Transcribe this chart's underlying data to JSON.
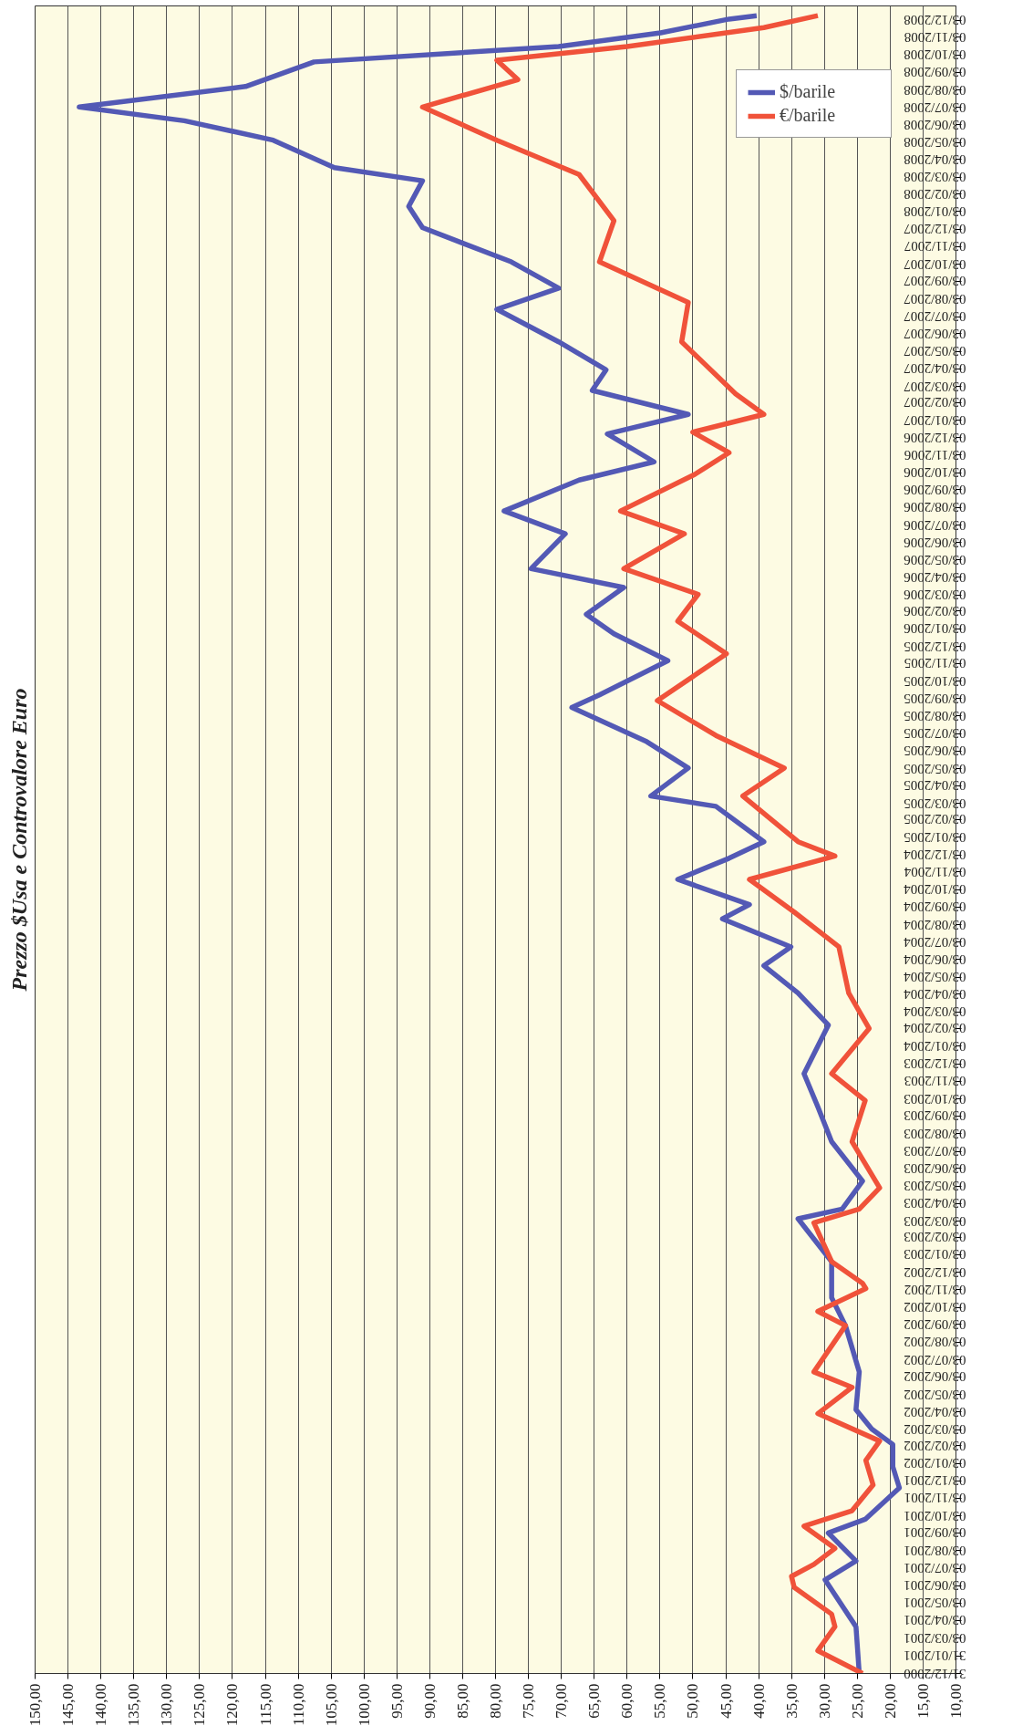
{
  "chart_data": {
    "type": "line",
    "orientation": "horizontal",
    "title": "Prezzo $Usa e Controvalore Euro",
    "series": [
      {
        "name": "$/barile",
        "color": "#5359b5",
        "x": [
          "2000-12-31",
          "2001-03-23",
          "2001-06-13",
          "2001-07-16",
          "2001-09-03",
          "2001-09-27",
          "2001-11-21",
          "2001-12-28",
          "2002-02-05",
          "2002-03-04",
          "2002-04-07",
          "2002-06-12",
          "2002-09-01",
          "2002-10-20",
          "2002-12-22",
          "2003-03-07",
          "2003-03-24",
          "2003-05-12",
          "2003-07-20",
          "2003-09-19",
          "2003-11-16",
          "2004-02-09",
          "2004-04-05",
          "2004-05-23",
          "2004-06-25",
          "2004-08-13",
          "2004-09-07",
          "2004-10-21",
          "2004-11-27",
          "2004-12-26",
          "2005-02-26",
          "2005-03-16",
          "2005-05-04",
          "2005-06-19",
          "2005-08-18",
          "2005-09-09",
          "2005-11-08",
          "2005-12-25",
          "2006-01-28",
          "2006-03-16",
          "2006-04-18",
          "2006-06-18",
          "2006-07-28",
          "2006-09-20",
          "2006-10-22",
          "2006-12-10",
          "2007-01-13",
          "2007-02-24",
          "2007-04-01",
          "2007-05-20",
          "2007-07-16",
          "2007-08-22",
          "2007-10-07",
          "2007-12-06",
          "2008-01-12",
          "2008-02-26",
          "2008-03-20",
          "2008-05-07",
          "2008-06-10",
          "2008-07-04",
          "2008-08-09",
          "2008-09-21",
          "2008-10-18",
          "2008-11-11",
          "2008-12-05",
          "2008-12-11"
        ],
        "values": [
          24.7,
          25.2,
          29.9,
          25.2,
          29.4,
          23.8,
          18.6,
          19.6,
          19.6,
          22.8,
          25.2,
          24.7,
          26.8,
          28.9,
          28.9,
          34.0,
          27.3,
          24.2,
          28.9,
          31.0,
          33.1,
          29.4,
          34.0,
          39.2,
          35.1,
          45.5,
          41.4,
          52.3,
          44.5,
          39.2,
          46.5,
          56.4,
          50.7,
          57.0,
          68.4,
          64.2,
          53.8,
          62.0,
          66.2,
          60.5,
          74.6,
          69.4,
          78.7,
          67.3,
          55.9,
          63.0,
          50.7,
          65.3,
          63.2,
          70.4,
          79.8,
          70.4,
          77.6,
          91.1,
          93.2,
          91.1,
          104.5,
          113.8,
          127.3,
          143.3,
          118.0,
          107.6,
          70.4,
          54.9,
          44.5,
          40.3
        ]
      },
      {
        "name": "€/barile",
        "color": "#f0523a",
        "x": [
          "2000-12-31",
          "2001-02-09",
          "2001-03-23",
          "2001-04-14",
          "2001-05-31",
          "2001-06-19",
          "2001-07-10",
          "2001-08-07",
          "2001-09-15",
          "2001-10-12",
          "2001-11-26",
          "2002-01-08",
          "2002-02-11",
          "2002-03-31",
          "2002-05-16",
          "2002-06-12",
          "2002-09-01",
          "2002-09-26",
          "2002-11-05",
          "2002-11-14",
          "2002-12-22",
          "2003-02-28",
          "2003-03-24",
          "2003-04-30",
          "2003-07-20",
          "2003-09-30",
          "2003-11-16",
          "2004-02-03",
          "2004-04-05",
          "2004-06-25",
          "2004-08-25",
          "2004-10-21",
          "2004-12-01",
          "2004-12-26",
          "2005-03-16",
          "2005-05-04",
          "2005-06-30",
          "2005-08-30",
          "2005-11-20",
          "2006-01-16",
          "2006-03-04",
          "2006-04-18",
          "2006-06-18",
          "2006-07-28",
          "2006-09-30",
          "2006-11-07",
          "2006-12-13",
          "2007-01-13",
          "2007-02-18",
          "2007-05-20",
          "2007-07-28",
          "2007-10-07",
          "2007-12-18",
          "2008-03-08",
          "2008-05-07",
          "2008-07-04",
          "2008-08-21",
          "2008-09-24",
          "2008-10-18",
          "2008-11-20",
          "2008-12-11"
        ],
        "values": [
          24.2,
          31.0,
          28.4,
          28.9,
          34.6,
          35.0,
          31.6,
          28.4,
          33.1,
          25.8,
          22.6,
          23.7,
          21.6,
          31.0,
          25.8,
          31.6,
          26.8,
          31.0,
          23.7,
          24.2,
          28.9,
          31.6,
          24.7,
          21.6,
          25.8,
          23.8,
          28.9,
          23.2,
          26.3,
          27.8,
          34.6,
          41.4,
          28.4,
          34.0,
          42.4,
          36.1,
          46.5,
          55.4,
          44.9,
          52.3,
          49.2,
          60.5,
          51.3,
          61.0,
          49.7,
          44.5,
          50.0,
          39.2,
          43.5,
          51.7,
          50.7,
          64.2,
          62.0,
          67.3,
          79.8,
          91.1,
          76.6,
          79.8,
          60.0,
          39.2,
          31.0
        ]
      }
    ],
    "xlim": [
      150,
      10
    ],
    "xticks": [
      {
        "value": 150,
        "label": "150,00"
      },
      {
        "value": 145,
        "label": "145,00"
      },
      {
        "value": 140,
        "label": "140,00"
      },
      {
        "value": 135,
        "label": "135,00"
      },
      {
        "value": 130,
        "label": "130,00"
      },
      {
        "value": 125,
        "label": "125,00"
      },
      {
        "value": 120,
        "label": "120,00"
      },
      {
        "value": 115,
        "label": "115,00"
      },
      {
        "value": 110,
        "label": "110,00"
      },
      {
        "value": 105,
        "label": "105,00"
      },
      {
        "value": 100,
        "label": "100,00"
      },
      {
        "value": 95,
        "label": "95,00"
      },
      {
        "value": 90,
        "label": "90,00"
      },
      {
        "value": 85,
        "label": "85,00"
      },
      {
        "value": 80,
        "label": "80,00"
      },
      {
        "value": 75,
        "label": "75,00"
      },
      {
        "value": 70,
        "label": "70,00"
      },
      {
        "value": 65,
        "label": "65,00"
      },
      {
        "value": 60,
        "label": "60,00"
      },
      {
        "value": 55,
        "label": "55,00"
      },
      {
        "value": 50,
        "label": "50,00"
      },
      {
        "value": 45,
        "label": "45,00"
      },
      {
        "value": 40,
        "label": "40,00"
      },
      {
        "value": 35,
        "label": "35,00"
      },
      {
        "value": 30,
        "label": "30,00"
      },
      {
        "value": 25,
        "label": "25,00"
      },
      {
        "value": 20,
        "label": "20,00"
      },
      {
        "value": 15,
        "label": "15,00"
      },
      {
        "value": 10,
        "label": "10,00"
      }
    ],
    "ylim": [
      "2000-12-31",
      "2008-12-28"
    ],
    "yticks": [
      {
        "value": "2000-12-31",
        "label": "31/12/2000"
      },
      {
        "value": "2001-01-31",
        "label": "31/01/2001"
      },
      {
        "value": "2001-03-03",
        "label": "03/03/2001"
      },
      {
        "value": "2001-04-03",
        "label": "03/04/2001"
      },
      {
        "value": "2001-05-03",
        "label": "03/05/2001"
      },
      {
        "value": "2001-06-03",
        "label": "03/06/2001"
      },
      {
        "value": "2001-07-03",
        "label": "03/07/2001"
      },
      {
        "value": "2001-08-03",
        "label": "03/08/2001"
      },
      {
        "value": "2001-09-03",
        "label": "03/09/2001"
      },
      {
        "value": "2001-10-03",
        "label": "03/10/2001"
      },
      {
        "value": "2001-11-03",
        "label": "03/11/2001"
      },
      {
        "value": "2001-12-03",
        "label": "03/12/2001"
      },
      {
        "value": "2002-01-03",
        "label": "03/01/2002"
      },
      {
        "value": "2002-02-03",
        "label": "03/02/2002"
      },
      {
        "value": "2002-03-03",
        "label": "03/03/2002"
      },
      {
        "value": "2002-04-03",
        "label": "03/04/2002"
      },
      {
        "value": "2002-05-03",
        "label": "03/05/2002"
      },
      {
        "value": "2002-06-03",
        "label": "03/06/2002"
      },
      {
        "value": "2002-07-03",
        "label": "03/07/2002"
      },
      {
        "value": "2002-08-03",
        "label": "03/08/2002"
      },
      {
        "value": "2002-09-03",
        "label": "03/09/2002"
      },
      {
        "value": "2002-10-03",
        "label": "03/10/2002"
      },
      {
        "value": "2002-11-03",
        "label": "03/11/2002"
      },
      {
        "value": "2002-12-03",
        "label": "03/12/2002"
      },
      {
        "value": "2003-01-03",
        "label": "03/01/2003"
      },
      {
        "value": "2003-02-03",
        "label": "03/02/2003"
      },
      {
        "value": "2003-03-03",
        "label": "03/03/2003"
      },
      {
        "value": "2003-04-03",
        "label": "03/04/2003"
      },
      {
        "value": "2003-05-03",
        "label": "03/05/2003"
      },
      {
        "value": "2003-06-03",
        "label": "03/06/2003"
      },
      {
        "value": "2003-07-03",
        "label": "03/07/2003"
      },
      {
        "value": "2003-08-03",
        "label": "03/08/2003"
      },
      {
        "value": "2003-09-03",
        "label": "03/09/2003"
      },
      {
        "value": "2003-10-03",
        "label": "03/10/2003"
      },
      {
        "value": "2003-11-03",
        "label": "03/11/2003"
      },
      {
        "value": "2003-12-03",
        "label": "03/12/2003"
      },
      {
        "value": "2004-01-03",
        "label": "03/01/2004"
      },
      {
        "value": "2004-02-03",
        "label": "03/02/2004"
      },
      {
        "value": "2004-03-03",
        "label": "03/03/2004"
      },
      {
        "value": "2004-04-03",
        "label": "03/04/2004"
      },
      {
        "value": "2004-05-03",
        "label": "03/05/2004"
      },
      {
        "value": "2004-06-03",
        "label": "03/06/2004"
      },
      {
        "value": "2004-07-03",
        "label": "03/07/2004"
      },
      {
        "value": "2004-08-03",
        "label": "03/08/2004"
      },
      {
        "value": "2004-09-03",
        "label": "03/09/2004"
      },
      {
        "value": "2004-10-03",
        "label": "03/10/2004"
      },
      {
        "value": "2004-11-03",
        "label": "03/11/2004"
      },
      {
        "value": "2004-12-03",
        "label": "03/12/2004"
      },
      {
        "value": "2005-01-03",
        "label": "03/01/2005"
      },
      {
        "value": "2005-02-03",
        "label": "03/02/2005"
      },
      {
        "value": "2005-03-03",
        "label": "03/03/2005"
      },
      {
        "value": "2005-04-03",
        "label": "03/04/2005"
      },
      {
        "value": "2005-05-03",
        "label": "03/05/2005"
      },
      {
        "value": "2005-06-03",
        "label": "03/06/2005"
      },
      {
        "value": "2005-07-03",
        "label": "03/07/2005"
      },
      {
        "value": "2005-08-03",
        "label": "03/08/2005"
      },
      {
        "value": "2005-09-03",
        "label": "03/09/2005"
      },
      {
        "value": "2005-10-03",
        "label": "03/10/2005"
      },
      {
        "value": "2005-11-03",
        "label": "03/11/2005"
      },
      {
        "value": "2005-12-03",
        "label": "03/12/2005"
      },
      {
        "value": "2006-01-03",
        "label": "03/01/2006"
      },
      {
        "value": "2006-02-03",
        "label": "03/02/2006"
      },
      {
        "value": "2006-03-03",
        "label": "03/03/2006"
      },
      {
        "value": "2006-04-03",
        "label": "03/04/2006"
      },
      {
        "value": "2006-05-03",
        "label": "03/05/2006"
      },
      {
        "value": "2006-06-03",
        "label": "03/06/2006"
      },
      {
        "value": "2006-07-03",
        "label": "03/07/2006"
      },
      {
        "value": "2006-08-03",
        "label": "03/08/2006"
      },
      {
        "value": "2006-09-03",
        "label": "03/09/2006"
      },
      {
        "value": "2006-10-03",
        "label": "03/10/2006"
      },
      {
        "value": "2006-11-03",
        "label": "03/11/2006"
      },
      {
        "value": "2006-12-03",
        "label": "03/12/2006"
      },
      {
        "value": "2007-01-03",
        "label": "03/01/2007"
      },
      {
        "value": "2007-02-03",
        "label": "03/02/2007"
      },
      {
        "value": "2007-03-03",
        "label": "03/03/2007"
      },
      {
        "value": "2007-04-03",
        "label": "03/04/2007"
      },
      {
        "value": "2007-05-03",
        "label": "03/05/2007"
      },
      {
        "value": "2007-06-03",
        "label": "03/06/2007"
      },
      {
        "value": "2007-07-03",
        "label": "03/07/2007"
      },
      {
        "value": "2007-08-03",
        "label": "03/08/2007"
      },
      {
        "value": "2007-09-03",
        "label": "03/09/2007"
      },
      {
        "value": "2007-10-03",
        "label": "03/10/2007"
      },
      {
        "value": "2007-11-03",
        "label": "03/11/2007"
      },
      {
        "value": "2007-12-03",
        "label": "03/12/2007"
      },
      {
        "value": "2008-01-03",
        "label": "03/01/2008"
      },
      {
        "value": "2008-02-03",
        "label": "03/02/2008"
      },
      {
        "value": "2008-03-03",
        "label": "03/03/2008"
      },
      {
        "value": "2008-04-03",
        "label": "03/04/2008"
      },
      {
        "value": "2008-05-03",
        "label": "03/05/2008"
      },
      {
        "value": "2008-06-03",
        "label": "03/06/2008"
      },
      {
        "value": "2008-07-03",
        "label": "03/07/2008"
      },
      {
        "value": "2008-08-03",
        "label": "03/08/2008"
      },
      {
        "value": "2008-09-03",
        "label": "03/09/2008"
      },
      {
        "value": "2008-10-03",
        "label": "03/10/2008"
      },
      {
        "value": "2008-11-03",
        "label": "03/11/2008"
      },
      {
        "value": "2008-12-03",
        "label": "03/12/2008"
      }
    ],
    "grid": "x",
    "legend": "top right",
    "marker": "none",
    "line_style": "solid"
  }
}
